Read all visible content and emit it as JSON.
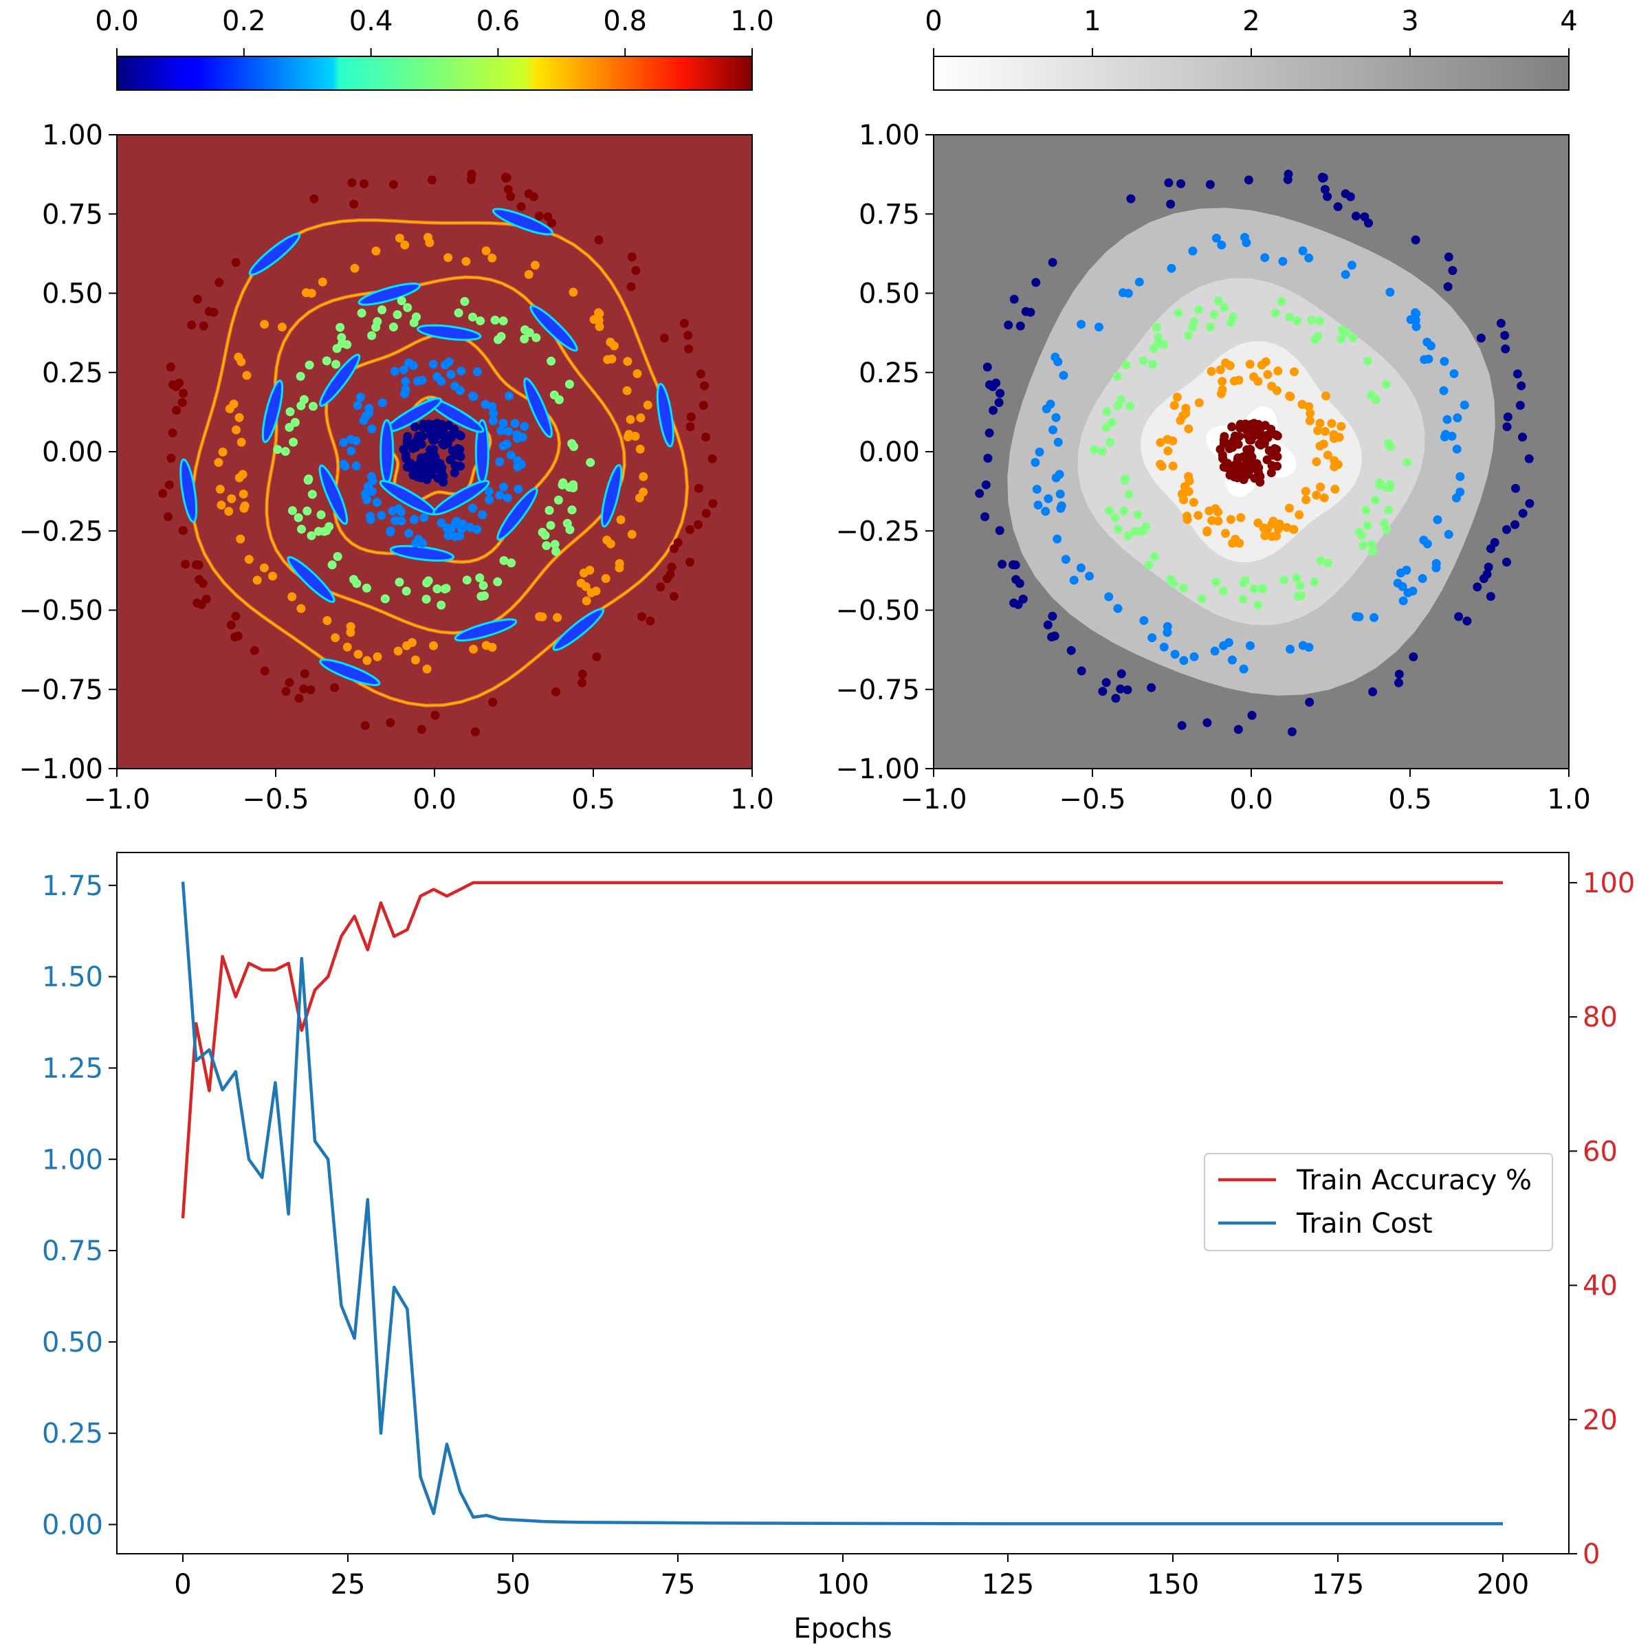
{
  "colors": {
    "cost": "#1f77b4",
    "accuracy": "#d62728",
    "axis": "#000000",
    "heat_bg": "#962e33",
    "grey_bg": "#808080"
  },
  "chart_data": [
    {
      "id": "confidence-map",
      "type": "heatmap",
      "colormap": "jet",
      "colorbar": {
        "position": "top",
        "range": [
          0.0,
          1.0
        ],
        "ticks": [
          "0.0",
          "0.2",
          "0.4",
          "0.6",
          "0.8",
          "1.0"
        ]
      },
      "xlim": [
        -1.0,
        1.0
      ],
      "ylim": [
        -1.0,
        1.0
      ],
      "xticks": [
        "−1.0",
        "−0.5",
        "0.0",
        "0.5",
        "1.0"
      ],
      "yticks": [
        "1.00",
        "0.75",
        "0.50",
        "0.25",
        "0.00",
        "−0.25",
        "−0.50",
        "−0.75",
        "−1.00"
      ],
      "scatter": {
        "classes": 5,
        "class_radii": [
          0.05,
          0.25,
          0.45,
          0.65,
          0.85
        ],
        "class_colors": [
          "#00008b",
          "#0080ff",
          "#80ff80",
          "#ff9900",
          "#800000"
        ],
        "points_per_class": 100
      }
    },
    {
      "id": "class-map",
      "type": "heatmap",
      "colormap": "Greys",
      "colorbar": {
        "position": "top",
        "range": [
          0,
          4
        ],
        "ticks": [
          "0",
          "1",
          "2",
          "3",
          "4"
        ]
      },
      "xlim": [
        -1.0,
        1.0
      ],
      "ylim": [
        -1.0,
        1.0
      ],
      "xticks": [
        "−1.0",
        "−0.5",
        "0.0",
        "0.5",
        "1.0"
      ],
      "yticks": [
        "1.00",
        "0.75",
        "0.50",
        "0.25",
        "0.00",
        "−0.25",
        "−0.50",
        "−0.75",
        "−1.00"
      ],
      "region_radii": [
        0.12,
        0.32,
        0.52,
        0.76
      ],
      "scatter": {
        "classes": 5,
        "class_radii": [
          0.05,
          0.25,
          0.45,
          0.65,
          0.85
        ],
        "class_colors": [
          "#800000",
          "#ff9900",
          "#80ff80",
          "#0080ff",
          "#00008b"
        ],
        "points_per_class": 100
      }
    },
    {
      "id": "training-curves",
      "type": "line",
      "xlabel": "Epochs",
      "xlim": [
        -10,
        210
      ],
      "xticks": [
        "0",
        "25",
        "50",
        "75",
        "100",
        "125",
        "150",
        "175",
        "200"
      ],
      "ylim_left": [
        -0.08,
        1.84
      ],
      "yticks_left": [
        "0.00",
        "0.25",
        "0.50",
        "0.75",
        "1.00",
        "1.25",
        "1.50",
        "1.75"
      ],
      "ylim_right": [
        0,
        104.5
      ],
      "yticks_right": [
        "0",
        "20",
        "40",
        "60",
        "80",
        "100"
      ],
      "legend": {
        "location": "center-right",
        "entries": [
          "Train Accuracy %",
          "Train Cost"
        ]
      },
      "x": [
        0,
        2,
        4,
        6,
        8,
        10,
        12,
        14,
        16,
        18,
        20,
        22,
        24,
        26,
        28,
        30,
        32,
        34,
        36,
        38,
        40,
        42,
        44,
        46,
        48,
        50,
        55,
        60,
        70,
        80,
        100,
        125,
        150,
        175,
        200
      ],
      "series": [
        {
          "name": "Train Cost",
          "axis": "left",
          "values": [
            1.76,
            1.27,
            1.3,
            1.19,
            1.24,
            1.0,
            0.95,
            1.21,
            0.85,
            1.55,
            1.05,
            1.0,
            0.6,
            0.51,
            0.89,
            0.25,
            0.65,
            0.59,
            0.13,
            0.03,
            0.22,
            0.09,
            0.02,
            0.025,
            0.015,
            0.013,
            0.008,
            0.006,
            0.005,
            0.004,
            0.003,
            0.002,
            0.002,
            0.002,
            0.002
          ]
        },
        {
          "name": "Train Accuracy %",
          "axis": "right",
          "values": [
            50,
            79,
            69,
            89,
            83,
            88,
            87,
            87,
            88,
            78,
            84,
            86,
            92,
            95,
            90,
            97,
            92,
            93,
            98,
            99,
            98,
            99,
            100,
            100,
            100,
            100,
            100,
            100,
            100,
            100,
            100,
            100,
            100,
            100,
            100
          ]
        }
      ]
    }
  ]
}
